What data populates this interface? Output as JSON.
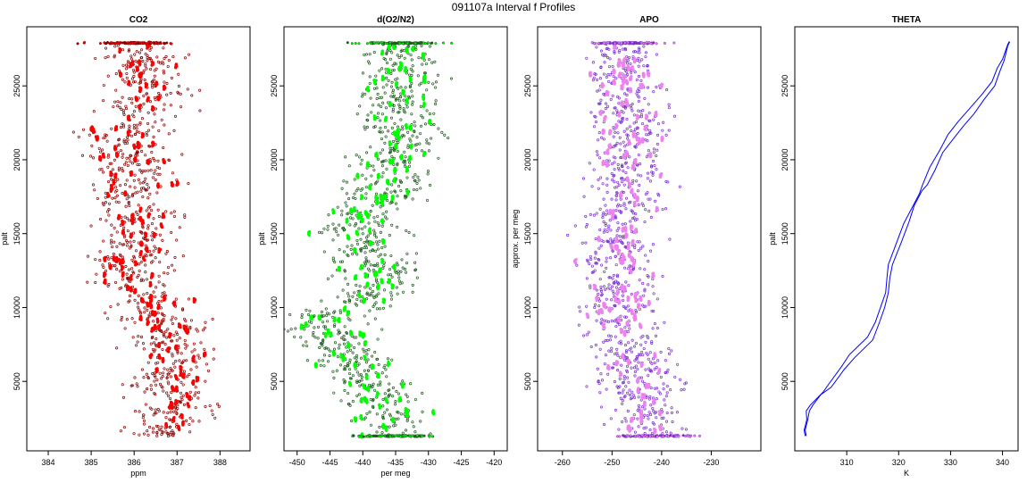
{
  "page_title": "091107a   Interval f Profiles",
  "chart_data": [
    {
      "type": "scatter",
      "title": "CO2",
      "xlabel": "ppm",
      "ylabel": "palt",
      "xlim": [
        383.5,
        388.7
      ],
      "ylim": [
        300,
        29000
      ],
      "xticks": [
        384,
        385,
        386,
        387,
        388
      ],
      "yticks": [
        5000,
        10000,
        15000,
        20000,
        25000
      ],
      "colors": {
        "raw": "#8b0000",
        "avg": "#ff0000"
      },
      "center": [
        [
          386.0,
          1300
        ],
        [
          386.6,
          1300
        ],
        [
          387.0,
          2200
        ],
        [
          386.7,
          3000
        ],
        [
          387.3,
          3500
        ],
        [
          386.5,
          4500
        ],
        [
          386.9,
          5400
        ],
        [
          387.1,
          6500
        ],
        [
          386.6,
          7500
        ],
        [
          386.9,
          8500
        ],
        [
          386.4,
          9500
        ],
        [
          386.6,
          10500
        ],
        [
          386.0,
          11500
        ],
        [
          385.9,
          12500
        ],
        [
          386.0,
          13500
        ],
        [
          386.1,
          14500
        ],
        [
          385.9,
          15500
        ],
        [
          386.3,
          16500
        ],
        [
          385.8,
          17500
        ],
        [
          386.1,
          18500
        ],
        [
          385.9,
          19500
        ],
        [
          386.0,
          20500
        ],
        [
          385.9,
          21500
        ],
        [
          386.0,
          22500
        ],
        [
          386.1,
          23500
        ],
        [
          386.3,
          24500
        ],
        [
          386.2,
          25500
        ],
        [
          386.3,
          26500
        ],
        [
          386.2,
          27200
        ],
        [
          386.0,
          27900
        ]
      ],
      "spread": 0.7,
      "top": 27900,
      "bottom": 1300
    },
    {
      "type": "scatter",
      "title": "d(O2/N2)",
      "xlabel": "per meg",
      "ylabel": "palt",
      "xlim": [
        -452,
        -418
      ],
      "ylim": [
        300,
        29000
      ],
      "xticks": [
        -450,
        -445,
        -440,
        -435,
        -430,
        -425,
        -420
      ],
      "yticks": [
        5000,
        10000,
        15000,
        20000,
        25000
      ],
      "colors": {
        "raw": "#1e5a1e",
        "avg": "#00ff00"
      },
      "center": [
        [
          -435,
          1300
        ],
        [
          -437,
          2200
        ],
        [
          -436,
          3000
        ],
        [
          -437,
          3500
        ],
        [
          -438,
          4500
        ],
        [
          -440,
          5400
        ],
        [
          -441,
          6500
        ],
        [
          -444,
          7500
        ],
        [
          -446,
          8500
        ],
        [
          -444,
          9500
        ],
        [
          -440,
          10500
        ],
        [
          -438,
          11500
        ],
        [
          -437,
          12500
        ],
        [
          -439,
          13500
        ],
        [
          -440,
          14500
        ],
        [
          -441,
          15500
        ],
        [
          -439,
          16500
        ],
        [
          -437,
          17500
        ],
        [
          -436,
          18500
        ],
        [
          -436,
          19500
        ],
        [
          -435,
          20500
        ],
        [
          -434,
          21500
        ],
        [
          -435,
          22500
        ],
        [
          -435,
          23500
        ],
        [
          -434,
          24500
        ],
        [
          -434,
          25500
        ],
        [
          -435,
          26500
        ],
        [
          -435,
          27200
        ],
        [
          -434,
          27900
        ]
      ],
      "spread": 4.5,
      "top": 27900,
      "bottom": 1300
    },
    {
      "type": "scatter",
      "title": "APO",
      "xlabel": "",
      "ylabel": "approx. per meg",
      "xlim": [
        -265,
        -220
      ],
      "ylim": [
        300,
        29000
      ],
      "xticks": [
        -260,
        -250,
        -240,
        -230
      ],
      "yticks": [
        5000,
        10000,
        15000,
        20000,
        25000
      ],
      "colors": {
        "raw": "#7b2fd0",
        "avg": "#ee82ee"
      },
      "center": [
        [
          -242,
          1300
        ],
        [
          -242,
          2200
        ],
        [
          -243,
          3000
        ],
        [
          -244,
          3500
        ],
        [
          -245,
          4500
        ],
        [
          -246,
          5400
        ],
        [
          -246,
          6500
        ],
        [
          -248,
          7500
        ],
        [
          -248,
          8500
        ],
        [
          -249,
          9500
        ],
        [
          -249,
          10500
        ],
        [
          -248,
          11500
        ],
        [
          -249,
          12500
        ],
        [
          -249,
          13500
        ],
        [
          -249,
          14500
        ],
        [
          -249,
          15500
        ],
        [
          -248,
          16500
        ],
        [
          -247,
          17500
        ],
        [
          -247,
          18500
        ],
        [
          -247,
          19500
        ],
        [
          -247,
          20500
        ],
        [
          -246,
          21500
        ],
        [
          -247,
          22500
        ],
        [
          -247,
          23500
        ],
        [
          -247,
          24500
        ],
        [
          -247,
          25500
        ],
        [
          -247,
          26500
        ],
        [
          -248,
          27200
        ],
        [
          -247,
          27900
        ]
      ],
      "spread": 5.5,
      "top": 27900,
      "bottom": 1300
    },
    {
      "type": "line",
      "title": "THETA",
      "xlabel": "K",
      "ylabel": "palt",
      "xlim": [
        300,
        343
      ],
      "ylim": [
        300,
        29000
      ],
      "xticks": [
        310,
        320,
        330,
        340
      ],
      "yticks": [
        5000,
        10000,
        15000,
        20000,
        25000
      ],
      "colors": {
        "line": "#0000ff"
      },
      "series": [
        {
          "x": [
            302.0,
            301.8,
            302.3,
            302.2,
            303.0,
            305.5,
            306.5,
            309.0,
            310.5,
            314.0,
            315.5,
            316.7,
            317.5,
            317.8,
            318.0,
            319.5,
            321.0,
            322.5,
            324.0,
            324.5,
            326.0,
            328.0,
            329.5,
            331.5,
            333.5,
            336.0,
            338.0,
            339.0,
            340.0,
            341.0,
            341.3
          ],
          "y": [
            1300,
            1700,
            2400,
            3000,
            3400,
            4300,
            4800,
            6000,
            6800,
            8000,
            9000,
            10200,
            11000,
            12200,
            12900,
            14300,
            15700,
            16700,
            17700,
            18200,
            19500,
            20700,
            21700,
            22600,
            23400,
            24400,
            25300,
            26200,
            26800,
            27800,
            28000
          ]
        },
        {
          "x": [
            302.2,
            302.0,
            302.5,
            302.8,
            303.5,
            305.0,
            307.0,
            309.5,
            311.5,
            315.0,
            316.3,
            317.3,
            318.0,
            318.3,
            318.8,
            320.5,
            322.0,
            323.0,
            324.5,
            325.5,
            327.0,
            328.5,
            330.5,
            332.5,
            334.5,
            336.5,
            338.5,
            339.5,
            340.3,
            341.0,
            341.4
          ],
          "y": [
            1300,
            1700,
            2400,
            3000,
            3400,
            4100,
            4600,
            5800,
            6600,
            7800,
            9000,
            10000,
            11000,
            12000,
            12900,
            14400,
            15800,
            16900,
            17900,
            18300,
            19300,
            20500,
            21400,
            22300,
            23100,
            24100,
            25000,
            26000,
            26700,
            27700,
            28000
          ]
        }
      ]
    }
  ]
}
